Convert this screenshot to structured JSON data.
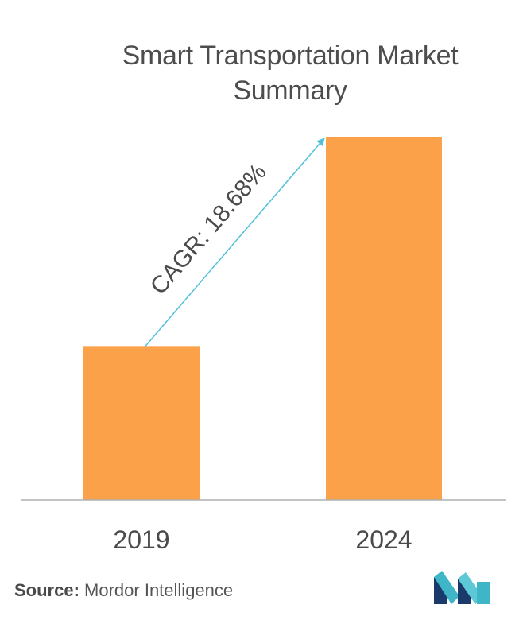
{
  "chart_data": {
    "type": "bar",
    "title_lines": [
      "Smart Transportation Market",
      "Summary"
    ],
    "categories": [
      "2019",
      "2024"
    ],
    "values": [
      1.0,
      2.36
    ],
    "value_note": "",
    "annotation": "CAGR: 18.68%",
    "grid": false,
    "legend": "none",
    "colors": {
      "bar": "#fba14a",
      "axis": "#b0b0b0",
      "arrow": "#4fc1d9",
      "text": "#4a4a4a"
    }
  },
  "source": {
    "label": "Source:",
    "text": " Mordor Intelligence"
  },
  "logo": {
    "icon": "mordor-intelligence-logo",
    "colors": [
      "#1a3a6b",
      "#3fb6c7",
      "#5ec9d6"
    ]
  }
}
